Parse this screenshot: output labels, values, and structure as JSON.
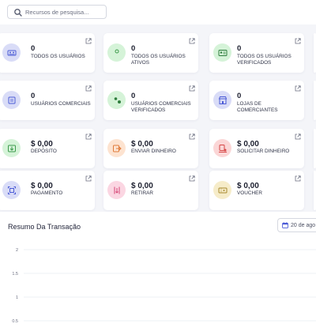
{
  "search": {
    "placeholder": "Recursos de pesquisa..."
  },
  "cards": [
    {
      "value": "0",
      "label": "TODOS OS USUÁRIOS",
      "icon": "users-icon",
      "bg": "#d9dcf7",
      "fg": "#4b5bd6"
    },
    {
      "value": "0",
      "label": "TODOS OS USUÁRIOS ATIVOS",
      "icon": "user-active-icon",
      "bg": "#d5f3d8",
      "fg": "#3c9a4b"
    },
    {
      "value": "0",
      "label": "TODOS OS USUÁRIOS VERIFICADOS",
      "icon": "id-card-icon",
      "bg": "#d5f3d8",
      "fg": "#2e7d3d"
    },
    {
      "value": "0",
      "label": "USUÁRIOS COMERCIAIS",
      "icon": "merchant-user-icon",
      "bg": "#d9dcf7",
      "fg": "#4b5bd6"
    },
    {
      "value": "0",
      "label": "USUÁRIOS COMERCIAIS VERIFICADOS",
      "icon": "merchant-verified-icon",
      "bg": "#d5f3d8",
      "fg": "#2e7d3d"
    },
    {
      "value": "0",
      "label": "LOJAS DE COMERCIANTES",
      "icon": "store-icon",
      "bg": "#d9dcf7",
      "fg": "#4b5bd6"
    },
    {
      "value": "$ 0,00",
      "label": "DEPÓSITO",
      "icon": "deposit-icon",
      "bg": "#d5f3d8",
      "fg": "#3c9a4b"
    },
    {
      "value": "$ 0,00",
      "label": "ENVIAR DINHEIRO",
      "icon": "send-money-icon",
      "bg": "#fde3d0",
      "fg": "#e07b3a"
    },
    {
      "value": "$ 0,00",
      "label": "SOLICITAR DINHEIRO",
      "icon": "request-money-icon",
      "bg": "#fbd6d6",
      "fg": "#d64545"
    },
    {
      "value": "$ 0,00",
      "label": "PAGAMENTO",
      "icon": "payment-icon",
      "bg": "#d9dcf7",
      "fg": "#4b5bd6"
    },
    {
      "value": "$ 0,00",
      "label": "RETIRAR",
      "icon": "withdraw-icon",
      "bg": "#fbd6e2",
      "fg": "#d64575"
    },
    {
      "value": "$ 0,00",
      "label": "VOUCHER",
      "icon": "voucher-icon",
      "bg": "#f6ecc9",
      "fg": "#a88a2e"
    }
  ],
  "transactions": {
    "title": "Resumo Da Transação",
    "date_label": "20 de ago"
  },
  "chart_data": {
    "type": "line",
    "title": "",
    "xlabel": "",
    "ylabel": "",
    "y_ticks": [
      "2",
      "1.5",
      "1",
      "0.5"
    ],
    "ylim": [
      0,
      2
    ],
    "series": [],
    "grid": true
  }
}
